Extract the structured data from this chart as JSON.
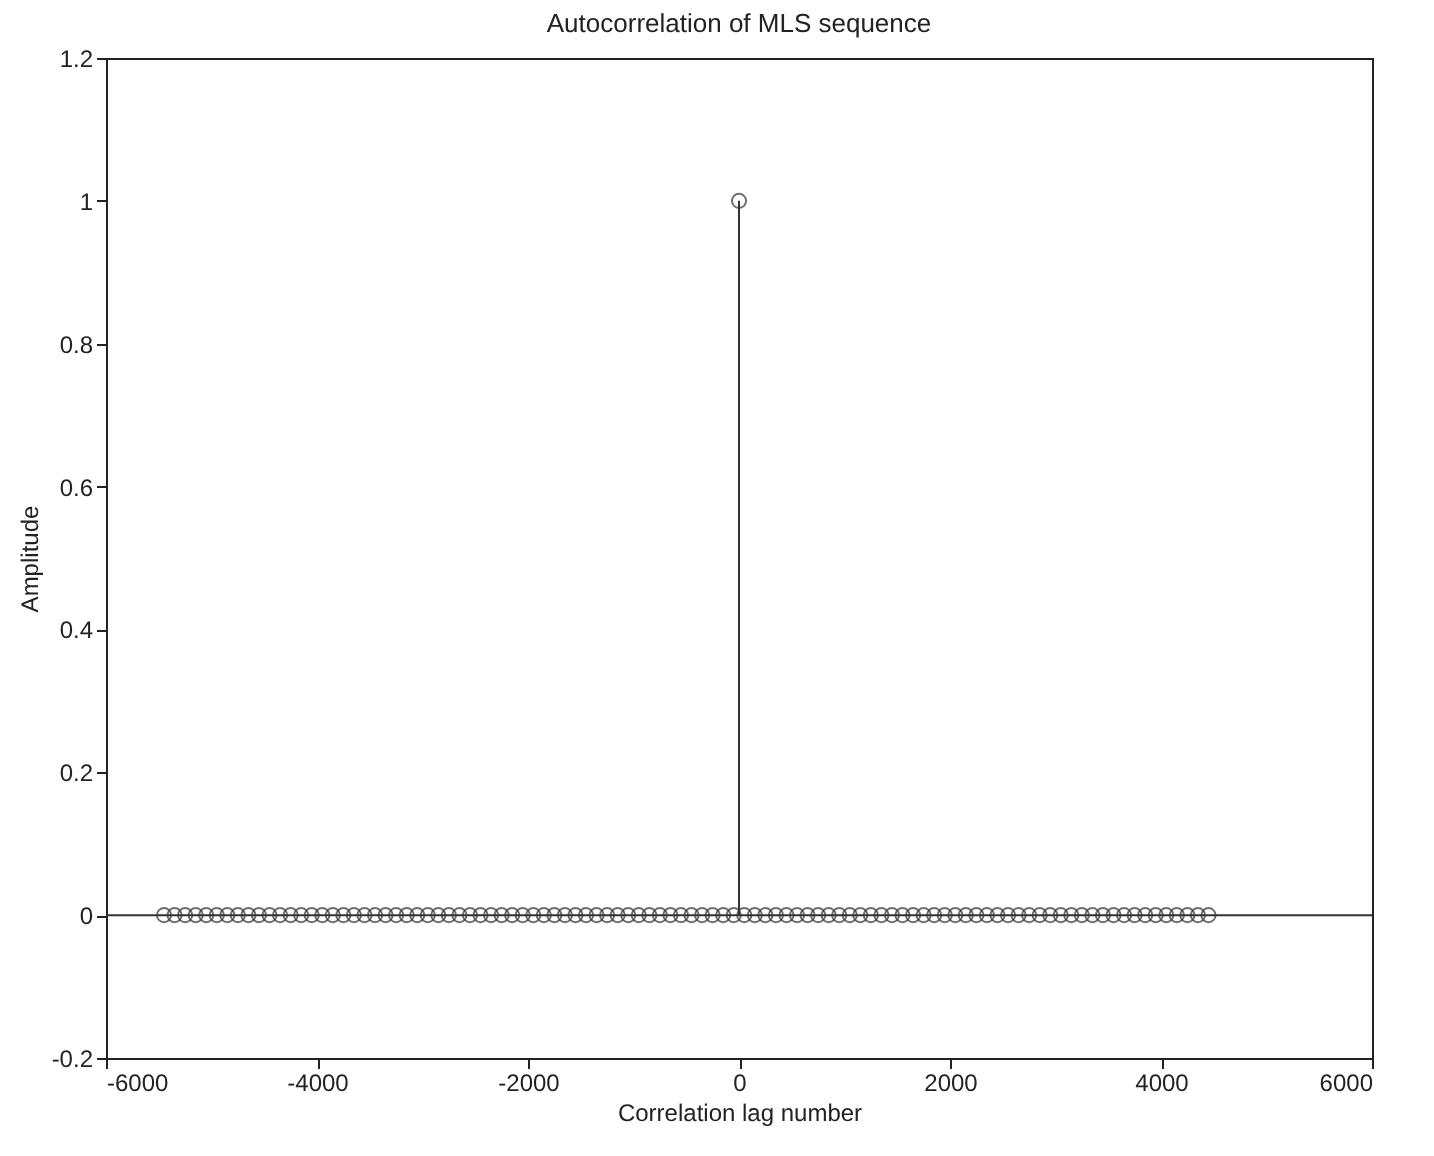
{
  "chart_data": {
    "type": "lollipop",
    "title": "Autocorrelation of MLS sequence",
    "xlabel": "Correlation lag number",
    "ylabel": "Amplitude",
    "series": [
      {
        "color": "#333333",
        "marker": "circle",
        "x": [
          -5450,
          -5350,
          -5250,
          -5150,
          -5050,
          -4950,
          -4850,
          -4750,
          -4650,
          -4550,
          -4450,
          -4350,
          -4250,
          -4150,
          -4050,
          -3950,
          -3850,
          -3750,
          -3650,
          -3550,
          -3450,
          -3350,
          -3250,
          -3150,
          -3050,
          -2950,
          -2850,
          -2750,
          -2650,
          -2550,
          -2450,
          -2350,
          -2250,
          -2150,
          -2050,
          -1950,
          -1850,
          -1750,
          -1650,
          -1550,
          -1450,
          -1350,
          -1250,
          -1150,
          -1050,
          -950,
          -850,
          -750,
          -650,
          -550,
          -450,
          -350,
          -250,
          -150,
          -50,
          0,
          50,
          150,
          250,
          350,
          450,
          550,
          650,
          750,
          850,
          950,
          1050,
          1150,
          1250,
          1350,
          1450,
          1550,
          1650,
          1750,
          1850,
          1950,
          2050,
          2150,
          2250,
          2350,
          2450,
          2550,
          2650,
          2750,
          2850,
          2950,
          3050,
          3150,
          3250,
          3350,
          3450,
          3550,
          3650,
          3750,
          3850,
          3950,
          4050,
          4150,
          4250,
          4350,
          4450
        ],
        "values": [
          0,
          0,
          0,
          0,
          0,
          0,
          0,
          0,
          0,
          0,
          0,
          0,
          0,
          0,
          0,
          0,
          0,
          0,
          0,
          0,
          0,
          0,
          0,
          0,
          0,
          0,
          0,
          0,
          0,
          0,
          0,
          0,
          0,
          0,
          0,
          0,
          0,
          0,
          0,
          0,
          0,
          0,
          0,
          0,
          0,
          0,
          0,
          0,
          0,
          0,
          0,
          0,
          0,
          0,
          0,
          1,
          0,
          0,
          0,
          0,
          0,
          0,
          0,
          0,
          0,
          0,
          0,
          0,
          0,
          0,
          0,
          0,
          0,
          0,
          0,
          0,
          0,
          0,
          0,
          0,
          0,
          0,
          0,
          0,
          0,
          0,
          0,
          0,
          0,
          0,
          0,
          0,
          0,
          0,
          0,
          0,
          0,
          0,
          0,
          0,
          0
        ]
      },
      {
        "type": "line",
        "color": "#333333",
        "marker": "none",
        "x": [
          -6000,
          6000
        ],
        "values": [
          0,
          0
        ]
      }
    ],
    "grid": false,
    "xlim": [
      -6000,
      6000
    ],
    "xticks": [
      -6000,
      -4000,
      -2000,
      0,
      2000,
      4000,
      6000
    ],
    "ylim": [
      -0.2,
      1.2
    ],
    "yticks": [
      -0.2,
      0,
      0.2,
      0.4,
      0.6,
      0.8,
      1,
      1.2
    ]
  }
}
